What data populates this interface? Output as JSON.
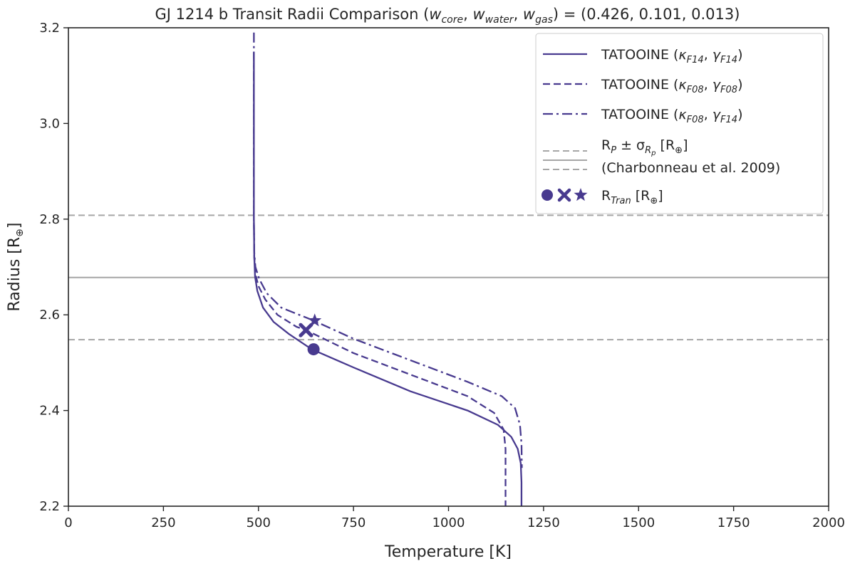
{
  "chart_data": {
    "type": "line",
    "title": "GJ 1214 b Transit Radii Comparison (w_core, w_water, w_gas) = (0.426, 0.101, 0.013)",
    "title_parts": {
      "prefix": "GJ 1214 b Transit Radii Comparison (",
      "w": "w",
      "sub_core": "core",
      "sub_water": "water",
      "sub_gas": "gas",
      "suffix": ") = (0.426, 0.101, 0.013)"
    },
    "xlabel": "Temperature [K]",
    "ylabel_main": "Radius [R",
    "ylabel_sym": "⊕",
    "ylabel_end": "]",
    "xlim": [
      0,
      2000
    ],
    "ylim": [
      2.2,
      3.2
    ],
    "xticks": [
      0,
      250,
      500,
      750,
      1000,
      1250,
      1500,
      1750,
      2000
    ],
    "xtick_labels": [
      "0",
      "250",
      "500",
      "750",
      "1000",
      "1250",
      "1500",
      "1750",
      "2000"
    ],
    "yticks": [
      2.2,
      2.4,
      2.6,
      2.8,
      3.0,
      3.2
    ],
    "ytick_labels": [
      "2.2",
      "2.4",
      "2.6",
      "2.8",
      "3.0",
      "3.2"
    ],
    "grid": false,
    "legend_position": "top-right",
    "line_color": "#483a8f",
    "ref_color": "#a6a6a6",
    "series": [
      {
        "legend_prefix": "TATOOINE (",
        "k_sub": "F14",
        "g_sub": "F14",
        "dash": "solid",
        "points": [
          [
            488,
            3.15
          ],
          [
            488,
            2.8
          ],
          [
            489,
            2.72
          ],
          [
            491,
            2.68
          ],
          [
            497,
            2.65
          ],
          [
            512,
            2.615
          ],
          [
            540,
            2.585
          ],
          [
            580,
            2.56
          ],
          [
            640,
            2.528
          ],
          [
            750,
            2.49
          ],
          [
            900,
            2.44
          ],
          [
            1050,
            2.4
          ],
          [
            1130,
            2.37
          ],
          [
            1165,
            2.345
          ],
          [
            1182,
            2.32
          ],
          [
            1190,
            2.29
          ],
          [
            1192,
            2.25
          ],
          [
            1192,
            2.2
          ]
        ],
        "marker": {
          "shape": "circle",
          "x": 645,
          "y": 2.528
        }
      },
      {
        "legend_prefix": "TATOOINE (",
        "k_sub": "F08",
        "g_sub": "F08",
        "dash": "dashed",
        "points": [
          [
            488,
            3.15
          ],
          [
            488,
            2.8
          ],
          [
            489,
            2.72
          ],
          [
            492,
            2.685
          ],
          [
            500,
            2.66
          ],
          [
            518,
            2.632
          ],
          [
            550,
            2.6
          ],
          [
            600,
            2.575
          ],
          [
            625,
            2.568
          ],
          [
            750,
            2.52
          ],
          [
            900,
            2.475
          ],
          [
            1050,
            2.43
          ],
          [
            1120,
            2.395
          ],
          [
            1145,
            2.36
          ],
          [
            1150,
            2.32
          ],
          [
            1150,
            2.2
          ]
        ],
        "marker": {
          "shape": "x",
          "x": 625,
          "y": 2.568
        }
      },
      {
        "legend_prefix": "TATOOINE (",
        "k_sub": "F08",
        "g_sub": "F14",
        "dash": "dashdot",
        "points": [
          [
            488,
            3.19
          ],
          [
            488,
            2.8
          ],
          [
            489,
            2.73
          ],
          [
            492,
            2.7
          ],
          [
            502,
            2.675
          ],
          [
            522,
            2.645
          ],
          [
            560,
            2.615
          ],
          [
            645,
            2.588
          ],
          [
            750,
            2.55
          ],
          [
            900,
            2.505
          ],
          [
            1050,
            2.46
          ],
          [
            1140,
            2.43
          ],
          [
            1175,
            2.405
          ],
          [
            1188,
            2.37
          ],
          [
            1192,
            2.33
          ],
          [
            1193,
            2.28
          ]
        ],
        "marker": {
          "shape": "star",
          "x": 648,
          "y": 2.588
        }
      }
    ],
    "reference": {
      "value": 2.678,
      "upper": 2.808,
      "lower": 2.548,
      "legend_line1_R": "R",
      "legend_line1_Rsub": "P",
      "legend_line1_pm": " ± σ",
      "legend_line1_sigsub": "R",
      "legend_line1_sigsubsub": "p",
      "legend_line1_unit": " [R",
      "legend_line1_sym": "⊕",
      "legend_line1_end": "]",
      "legend_line2": "(Charbonneau et al. 2009)"
    },
    "marker_legend": {
      "R": "R",
      "sub": "Tran",
      "unit": " [R",
      "sym": "⊕",
      "end": "]"
    }
  }
}
